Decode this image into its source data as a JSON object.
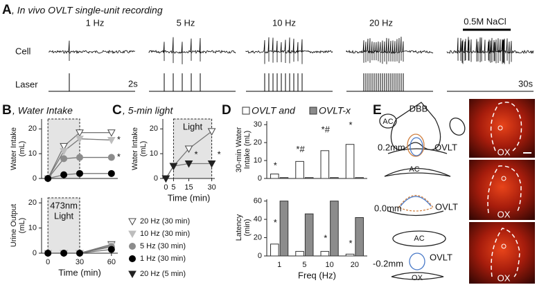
{
  "panel_a": {
    "label": "A",
    "title": ", In vivo OVLT single-unit recording",
    "columns": [
      "1 Hz",
      "5 Hz",
      "10 Hz",
      "20 Hz",
      "0.5M NaCl"
    ],
    "rows": [
      "Cell",
      "Laser"
    ],
    "scales": [
      "2s",
      "30s"
    ]
  },
  "panel_b": {
    "label": "B",
    "title": ", Water Intake"
  },
  "panel_c": {
    "label": "C",
    "title": ", 5-min light"
  },
  "panel_d": {
    "label": "D"
  },
  "panel_e": {
    "label": "E",
    "labels": [
      "DBB",
      "AC",
      "0.2mm",
      "OVLT",
      "AC",
      "0.0mm",
      "OVLT",
      "AC",
      "-0.2mm",
      "OVLT",
      "OX"
    ],
    "image_labels": [
      "OX",
      "OX",
      "OX"
    ]
  },
  "chart_data": [
    {
      "type": "line",
      "ylabel": [
        "Water Intake",
        "(mL)"
      ],
      "x": [
        0,
        15,
        30,
        60
      ],
      "xlim": [
        -6,
        66
      ],
      "ylim": [
        0,
        24
      ],
      "yticks": [
        0,
        10,
        20
      ],
      "shade": [
        0,
        30
      ],
      "series": [
        {
          "name": "20 Hz (30 min)",
          "color": "#ffffff",
          "marker": "triangle-down",
          "values": [
            0,
            13,
            18.5,
            18.5
          ]
        },
        {
          "name": "10 Hz (30 min)",
          "color": "#bdbdbd",
          "marker": "triangle-down",
          "values": [
            0,
            11,
            16,
            15.5
          ]
        },
        {
          "name": "5 Hz (30 min)",
          "color": "#8c8c8c",
          "marker": "circle",
          "values": [
            0,
            8,
            8.5,
            8.5
          ]
        },
        {
          "name": "1 Hz (30 min)",
          "color": "#000000",
          "marker": "circle",
          "values": [
            0,
            1.5,
            2,
            2
          ]
        }
      ],
      "annotations": [
        {
          "text": "*",
          "x": 60,
          "y": 15.5
        },
        {
          "text": "*",
          "x": 60,
          "y": 8.5
        }
      ]
    },
    {
      "type": "line",
      "ylabel": [
        "Urine Output",
        "(mL)"
      ],
      "xlabel": "Time (min)",
      "x": [
        0,
        15,
        30,
        60
      ],
      "xlim": [
        -6,
        66
      ],
      "xticks": [
        0,
        30,
        60
      ],
      "ylim": [
        0,
        22
      ],
      "yticks": [
        0,
        10,
        20
      ],
      "shade": [
        0,
        30
      ],
      "shade_label": [
        "473nm",
        "Light"
      ],
      "series": [
        {
          "color": "#ffffff",
          "marker": "triangle-down",
          "values": [
            0,
            0,
            0,
            3.5
          ]
        },
        {
          "color": "#bdbdbd",
          "marker": "triangle-down",
          "values": [
            0,
            0,
            0,
            3
          ]
        },
        {
          "color": "#8c8c8c",
          "marker": "circle",
          "values": [
            0,
            0,
            0,
            2.5
          ]
        },
        {
          "color": "#000000",
          "marker": "circle",
          "values": [
            0,
            0,
            0,
            1.5
          ]
        }
      ]
    },
    {
      "type": "line",
      "ylabel": [
        "Water Intake",
        "(mL)"
      ],
      "xlabel": "Time (min)",
      "x": [
        0,
        5,
        15,
        30
      ],
      "xlim": [
        -2,
        32
      ],
      "xticks": [
        0,
        5,
        15,
        30
      ],
      "ylim": [
        0,
        24
      ],
      "yticks": [
        0,
        10,
        20
      ],
      "shade": [
        5,
        30
      ],
      "shade_label": [
        "Light"
      ],
      "series": [
        {
          "color": "#ffffff",
          "marker": "triangle-down",
          "values": [
            0,
            5,
            12,
            19
          ]
        },
        {
          "name": "20 Hz (5 min)",
          "color": "#222222",
          "marker": "triangle-down",
          "values": [
            0,
            5,
            6,
            6
          ]
        }
      ],
      "annotations": [
        {
          "text": "*",
          "x": 15,
          "y": 9.5
        },
        {
          "text": "*",
          "x": 30,
          "y": 9.5
        }
      ]
    },
    {
      "type": "bar",
      "ylabel": [
        "30-min Water",
        "Intake (mL)"
      ],
      "ylim": [
        0,
        32
      ],
      "yticks": [
        0,
        10,
        20,
        30
      ],
      "series": [
        {
          "name": "OVLT and",
          "color": "#ffffff",
          "values": [
            2.5,
            9.5,
            15.5,
            19
          ]
        },
        {
          "name": "OVLT-x",
          "color": "#8c8c8c",
          "values": [
            0.5,
            0.5,
            0.5,
            0.5
          ]
        }
      ],
      "annotations": [
        {
          "text": "*",
          "category": 0,
          "y": 7
        },
        {
          "text": "*#",
          "category": 1,
          "y": 16
        },
        {
          "text": "*#",
          "category": 2,
          "y": 27
        },
        {
          "text": "*",
          "category": 3,
          "y": 29.5
        }
      ]
    },
    {
      "type": "bar",
      "ylabel": [
        "Latency",
        "(min)"
      ],
      "xlabel": "Freq (Hz)",
      "categories": [
        "1",
        "5",
        "10",
        "20"
      ],
      "ylim": [
        0,
        62
      ],
      "yticks": [
        0,
        20,
        40,
        60
      ],
      "series": [
        {
          "color": "#ffffff",
          "values": [
            13,
            5,
            5,
            2
          ]
        },
        {
          "color": "#8c8c8c",
          "values": [
            60,
            46,
            60,
            42
          ]
        }
      ],
      "annotations": [
        {
          "text": "*",
          "category": 0,
          "y": 36
        },
        {
          "text": "*",
          "category": 2,
          "y": 19
        },
        {
          "text": "*",
          "category": 3,
          "y": 13
        }
      ]
    }
  ]
}
